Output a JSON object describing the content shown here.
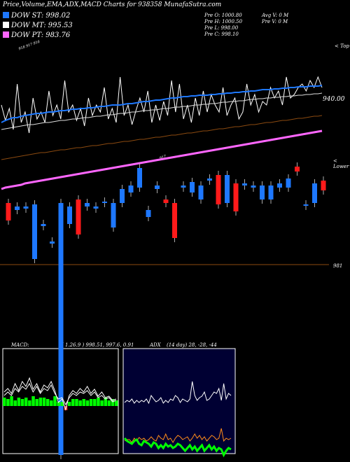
{
  "header": {
    "title": "Price,Volume,EMA,ADX,MACD Charts for 938358 MunafaSutra.com"
  },
  "legend": [
    {
      "label": "DOW ST: 998.02",
      "color": "#1e78ff"
    },
    {
      "label": "DOW MT: 995.53",
      "color": "#ffffff"
    },
    {
      "label": "DOW PT: 983.76",
      "color": "#ff66ff"
    }
  ],
  "info": {
    "col1": [
      "Pre  O: 1000.80",
      "Pre  H: 1000.50",
      "Pre  L: 998.00",
      "Pre  C: 998.10"
    ],
    "col2": [
      "Avg V: 0  M",
      "Pre  V: 0  M"
    ]
  },
  "axis_labels": {
    "price_tag": "940.00",
    "top": "< Top",
    "lower": "< Lower",
    "level": "981",
    "small_top": "918 917 916",
    "mid_tag": "917"
  },
  "macd": {
    "label": "MACD:",
    "values": "( 1.26.9 ) 998.51, 997.6, 0.91"
  },
  "adx": {
    "label": "ADX",
    "values": "(14 day) 28, -28, -44"
  },
  "chart_data": [
    {
      "type": "line",
      "name": "price-ema",
      "series": [
        {
          "name": "",
          "color": "#ffffff",
          "values": [
            150,
            172,
            155,
            185,
            120,
            175,
            160,
            190,
            140,
            170,
            160,
            175,
            130,
            165,
            150,
            170,
            115,
            160,
            150,
            172,
            155,
            180,
            140,
            165,
            150,
            160,
            125,
            170,
            155,
            175,
            110,
            165,
            150,
            178,
            158,
            140,
            160,
            130,
            175,
            150,
            172,
            145,
            165,
            115,
            160,
            120,
            170,
            150,
            175,
            140,
            165,
            130,
            160,
            135,
            150,
            160,
            125,
            165,
            150,
            140,
            170,
            160,
            120,
            150,
            135,
            160,
            145,
            150,
            125,
            140,
            130,
            150,
            110,
            140,
            135,
            125,
            120,
            130,
            115,
            125,
            110,
            125
          ]
        },
        {
          "name": "",
          "color": "#1e78ff",
          "values": [
            175,
            172,
            170,
            168,
            168,
            166,
            165,
            164,
            163,
            162,
            162,
            161,
            160,
            160,
            159,
            158,
            158,
            157,
            156,
            156,
            155,
            155,
            154,
            154,
            153,
            152,
            152,
            151,
            150,
            150,
            150,
            149,
            148,
            148,
            147,
            146,
            145,
            145,
            144,
            143,
            143,
            142,
            141,
            140,
            140,
            139,
            138,
            138,
            137,
            137,
            136,
            136,
            136,
            135,
            135,
            134,
            134,
            133,
            133,
            132,
            132,
            131,
            131,
            130,
            130,
            129,
            128,
            128,
            128,
            127,
            127,
            126,
            126,
            125,
            125,
            124,
            124,
            124,
            123,
            123,
            123,
            122
          ]
        },
        {
          "name": "",
          "color": "#dddddd",
          "values": [
            185,
            184,
            183,
            182,
            181,
            180,
            179,
            178,
            178,
            177,
            176,
            175,
            175,
            174,
            173,
            172,
            172,
            171,
            170,
            170,
            169,
            168,
            168,
            167,
            166,
            166,
            165,
            164,
            164,
            163,
            162,
            162,
            161,
            160,
            160,
            159,
            158,
            158,
            157,
            157,
            156,
            155,
            155,
            154,
            153,
            153,
            152,
            152,
            151,
            150,
            150,
            149,
            149,
            148,
            148,
            147,
            146,
            146,
            145,
            145,
            144,
            144,
            143,
            142,
            142,
            141,
            141,
            140,
            140,
            139,
            139,
            138,
            138,
            137,
            137,
            136,
            136,
            135,
            135,
            134,
            134,
            133
          ]
        },
        {
          "name": "",
          "color": "#8b4a10",
          "values": [
            228,
            227,
            226,
            225,
            224,
            223,
            222,
            221,
            220,
            219,
            218,
            218,
            217,
            216,
            215,
            214,
            214,
            213,
            212,
            211,
            211,
            210,
            209,
            208,
            208,
            207,
            206,
            205,
            205,
            204,
            203,
            202,
            202,
            201,
            200,
            199,
            199,
            198,
            197,
            196,
            196,
            195,
            194,
            193,
            193,
            192,
            191,
            190,
            190,
            189,
            188,
            187,
            187,
            186,
            185,
            184,
            184,
            183,
            182,
            181,
            181,
            180,
            179,
            178,
            178,
            177,
            176,
            175,
            175,
            174,
            173,
            172,
            172,
            171,
            170,
            169,
            169,
            168,
            167,
            166,
            166,
            165
          ]
        },
        {
          "name": "",
          "color": "#ff66ff",
          "values": [
            270,
            268,
            267,
            266,
            265,
            264,
            262,
            261,
            260,
            259,
            258,
            257,
            256,
            255,
            254,
            253,
            252,
            251,
            250,
            249,
            248,
            247,
            246,
            245,
            244,
            243,
            242,
            241,
            240,
            239,
            238,
            237,
            236,
            235,
            234,
            233,
            232,
            231,
            230,
            229,
            228,
            227,
            226,
            225,
            224,
            223,
            222,
            221,
            220,
            219,
            218,
            217,
            216,
            215,
            214,
            213,
            212,
            211,
            210,
            209,
            208,
            207,
            206,
            205,
            204,
            203,
            202,
            201,
            200,
            199,
            198,
            197,
            196,
            195,
            194,
            193,
            192,
            191,
            190,
            189,
            188,
            187
          ]
        }
      ]
    },
    {
      "type": "bar",
      "name": "candles",
      "series": [
        {
          "name": "",
          "values": [
            {
              "o": 290,
              "c": 315,
              "up": false
            },
            {
              "o": 295,
              "c": 300,
              "up": true
            },
            {
              "o": 295,
              "c": 298,
              "up": true
            },
            {
              "o": 292,
              "c": 370,
              "up": true
            },
            {
              "o": 320,
              "c": 323,
              "up": true
            },
            {
              "o": 345,
              "c": 348,
              "up": true
            },
            {
              "o": 290,
              "c": 650,
              "up": true
            },
            {
              "o": 295,
              "c": 320,
              "up": true
            },
            {
              "o": 285,
              "c": 335,
              "up": false
            },
            {
              "o": 290,
              "c": 295,
              "up": true
            },
            {
              "o": 295,
              "c": 298,
              "up": true
            },
            {
              "o": 288,
              "c": 290,
              "up": true
            },
            {
              "o": 290,
              "c": 325,
              "up": true
            },
            {
              "o": 270,
              "c": 290,
              "up": true
            },
            {
              "o": 265,
              "c": 275,
              "up": true
            },
            {
              "o": 240,
              "c": 268,
              "up": true
            },
            {
              "o": 300,
              "c": 310,
              "up": true
            },
            {
              "o": 265,
              "c": 270,
              "up": true
            },
            {
              "o": 285,
              "c": 290,
              "up": false
            },
            {
              "o": 290,
              "c": 340,
              "up": false
            },
            {
              "o": 265,
              "c": 268,
              "up": true
            },
            {
              "o": 260,
              "c": 275,
              "up": true
            },
            {
              "o": 265,
              "c": 285,
              "up": true
            },
            {
              "o": 255,
              "c": 258,
              "up": true
            },
            {
              "o": 250,
              "c": 292,
              "up": false
            },
            {
              "o": 250,
              "c": 290,
              "up": true
            },
            {
              "o": 262,
              "c": 302,
              "up": false
            },
            {
              "o": 262,
              "c": 265,
              "up": true
            },
            {
              "o": 265,
              "c": 268,
              "up": true
            },
            {
              "o": 265,
              "c": 285,
              "up": true
            },
            {
              "o": 265,
              "c": 285,
              "up": true
            },
            {
              "o": 262,
              "c": 268,
              "up": true
            },
            {
              "o": 255,
              "c": 268,
              "up": true
            },
            {
              "o": 238,
              "c": 245,
              "up": false
            },
            {
              "o": 292,
              "c": 294,
              "up": true
            },
            {
              "o": 262,
              "c": 290,
              "up": true
            },
            {
              "o": 258,
              "c": 272,
              "up": false
            }
          ]
        }
      ]
    },
    {
      "type": "line",
      "name": "macd-panel",
      "series": [
        {
          "name": "",
          "color": "#ffffff",
          "values": [
            560,
            555,
            562,
            548,
            558,
            545,
            552,
            540,
            556,
            548,
            560,
            550,
            554,
            545,
            558,
            575,
            570,
            585,
            565,
            558,
            562,
            555,
            560,
            552,
            562,
            556,
            566,
            560,
            568,
            566,
            572,
            570
          ]
        },
        {
          "name": "",
          "color": "#ffffff",
          "values": [
            565,
            560,
            565,
            555,
            560,
            552,
            556,
            548,
            560,
            552,
            562,
            555,
            558,
            550,
            562,
            570,
            568,
            578,
            568,
            562,
            565,
            560,
            562,
            558,
            565,
            560,
            568,
            565,
            570,
            568,
            574,
            572
          ]
        },
        {
          "name": "",
          "color": "#00ff00",
          "values": [
            12,
            10,
            14,
            8,
            12,
            10,
            12,
            8,
            14,
            10,
            12,
            12,
            10,
            8,
            14,
            6,
            6,
            -6,
            6,
            10,
            10,
            8,
            10,
            8,
            10,
            10,
            12,
            8,
            12,
            8,
            10,
            8
          ]
        }
      ]
    },
    {
      "type": "line",
      "name": "adx-panel",
      "series": [
        {
          "name": "",
          "color": "#ffffff",
          "values": [
            575,
            572,
            574,
            570,
            576,
            572,
            575,
            572,
            574,
            570,
            576,
            565,
            570,
            574,
            572,
            568,
            576,
            572,
            575,
            570,
            572,
            565,
            568,
            575,
            570,
            572,
            574,
            570,
            545,
            565,
            572,
            568,
            566,
            560,
            572,
            570,
            565,
            560,
            562,
            555,
            572,
            548,
            570,
            562,
            565
          ]
        },
        {
          "name": "",
          "color": "#ff8c1a",
          "values": [
            630,
            628,
            628,
            632,
            626,
            630,
            625,
            628,
            626,
            630,
            628,
            624,
            628,
            630,
            622,
            626,
            628,
            620,
            628,
            626,
            632,
            626,
            622,
            624,
            628,
            626,
            624,
            630,
            626,
            620,
            626,
            622,
            628,
            624,
            630,
            626,
            622,
            624,
            628,
            626,
            612,
            630,
            626,
            628,
            626
          ]
        },
        {
          "name": "",
          "color": "#00ff00",
          "values": [
            626,
            630,
            632,
            634,
            630,
            628,
            634,
            636,
            630,
            632,
            634,
            638,
            632,
            634,
            640,
            636,
            640,
            634,
            638,
            636,
            640,
            638,
            634,
            636,
            640,
            644,
            640,
            636,
            642,
            638,
            644,
            640,
            636,
            644,
            640,
            636,
            642,
            638,
            644,
            640,
            642,
            650,
            644,
            640,
            642
          ]
        }
      ]
    }
  ]
}
